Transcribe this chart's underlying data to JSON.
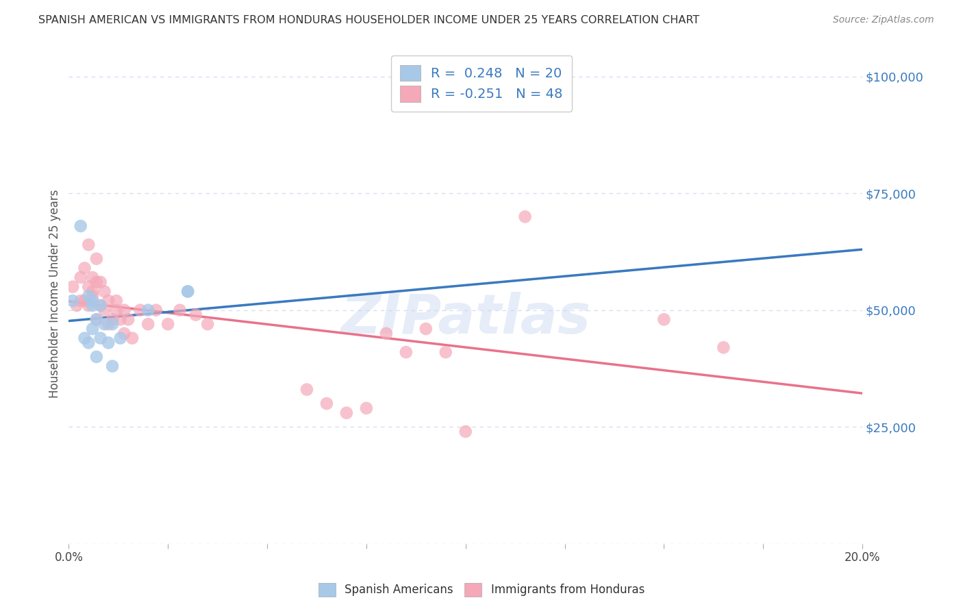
{
  "title": "SPANISH AMERICAN VS IMMIGRANTS FROM HONDURAS HOUSEHOLDER INCOME UNDER 25 YEARS CORRELATION CHART",
  "source": "Source: ZipAtlas.com",
  "ylabel": "Householder Income Under 25 years",
  "watermark": "ZIPatlas",
  "legend_bottom_blue": "Spanish Americans",
  "legend_bottom_pink": "Immigrants from Honduras",
  "y_ticks": [
    0,
    25000,
    50000,
    75000,
    100000
  ],
  "y_tick_labels": [
    "",
    "$25,000",
    "$50,000",
    "$75,000",
    "$100,000"
  ],
  "x_min": 0.0,
  "x_max": 0.2,
  "y_min": 0,
  "y_max": 107000,
  "blue_color": "#a8c8e8",
  "pink_color": "#f4a8b8",
  "blue_line_color": "#3a7abf",
  "pink_line_color": "#e8728a",
  "blue_dash_color": "#b0c8e0",
  "grid_color": "#d8dff0",
  "blue_R": 0.248,
  "pink_R": -0.251,
  "blue_N": 20,
  "pink_N": 48,
  "blue_scatter_x": [
    0.001,
    0.003,
    0.004,
    0.005,
    0.005,
    0.006,
    0.006,
    0.006,
    0.007,
    0.007,
    0.008,
    0.008,
    0.009,
    0.01,
    0.011,
    0.011,
    0.013,
    0.02,
    0.03,
    0.03
  ],
  "blue_scatter_y": [
    52000,
    68000,
    44000,
    43000,
    53000,
    51000,
    52000,
    46000,
    40000,
    48000,
    44000,
    51000,
    47000,
    43000,
    38000,
    47000,
    44000,
    50000,
    54000,
    54000
  ],
  "pink_scatter_x": [
    0.001,
    0.002,
    0.003,
    0.003,
    0.004,
    0.004,
    0.005,
    0.005,
    0.005,
    0.006,
    0.006,
    0.006,
    0.007,
    0.007,
    0.007,
    0.008,
    0.008,
    0.009,
    0.009,
    0.01,
    0.01,
    0.011,
    0.012,
    0.012,
    0.013,
    0.014,
    0.014,
    0.015,
    0.016,
    0.018,
    0.02,
    0.022,
    0.025,
    0.028,
    0.032,
    0.035,
    0.06,
    0.065,
    0.07,
    0.075,
    0.08,
    0.085,
    0.09,
    0.095,
    0.1,
    0.115,
    0.15,
    0.165
  ],
  "pink_scatter_y": [
    55000,
    51000,
    52000,
    57000,
    59000,
    52000,
    51000,
    55000,
    64000,
    54000,
    57000,
    53000,
    48000,
    56000,
    61000,
    51000,
    56000,
    50000,
    54000,
    47000,
    52000,
    48000,
    52000,
    50000,
    48000,
    45000,
    50000,
    48000,
    44000,
    50000,
    47000,
    50000,
    47000,
    50000,
    49000,
    47000,
    33000,
    30000,
    28000,
    29000,
    45000,
    41000,
    46000,
    41000,
    24000,
    70000,
    48000,
    42000
  ]
}
